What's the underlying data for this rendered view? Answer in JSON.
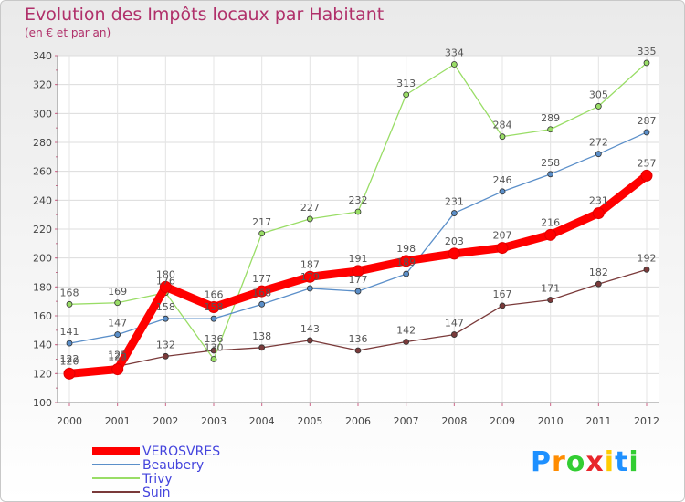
{
  "header": {
    "title": "Evolution des Impôts locaux par Habitant",
    "subtitle": "(en € et par an)"
  },
  "logo": {
    "text": "Proxiti",
    "colors": [
      "#1e90ff",
      "#ff8c00",
      "#32cd32",
      "#e8262b",
      "#ffcc00",
      "#1e90ff",
      "#32cd32"
    ]
  },
  "chart_data": {
    "type": "line",
    "title": "Evolution des Impôts locaux par Habitant",
    "subtitle": "(en € et par an)",
    "x": [
      2000,
      2001,
      2002,
      2003,
      2004,
      2005,
      2006,
      2007,
      2008,
      2009,
      2010,
      2011,
      2012
    ],
    "ylim": [
      100,
      340
    ],
    "yticks": [
      100,
      120,
      140,
      160,
      180,
      200,
      220,
      240,
      260,
      280,
      300,
      320,
      340
    ],
    "grid": true,
    "legend_position": "bottom-left",
    "series": [
      {
        "name": "VEROSVRES",
        "color": "#ff0000",
        "label_color": "#4444dd",
        "values": [
          120,
          123,
          180,
          166,
          177,
          187,
          191,
          198,
          203,
          207,
          216,
          231,
          257
        ]
      },
      {
        "name": "Beaubery",
        "color": "#5b8fc9",
        "label_color": "#4444dd",
        "values": [
          141,
          147,
          158,
          158,
          168,
          179,
          177,
          189,
          231,
          246,
          258,
          272,
          287
        ]
      },
      {
        "name": "Trivy",
        "color": "#99dd66",
        "label_color": "#4444dd",
        "values": [
          168,
          169,
          176,
          130,
          217,
          227,
          232,
          313,
          334,
          284,
          289,
          305,
          335
        ]
      },
      {
        "name": "Suin",
        "color": "#7a3a3a",
        "label_color": "#4444dd",
        "values": [
          122,
          125,
          132,
          136,
          138,
          143,
          136,
          142,
          147,
          167,
          171,
          182,
          192
        ]
      }
    ]
  }
}
